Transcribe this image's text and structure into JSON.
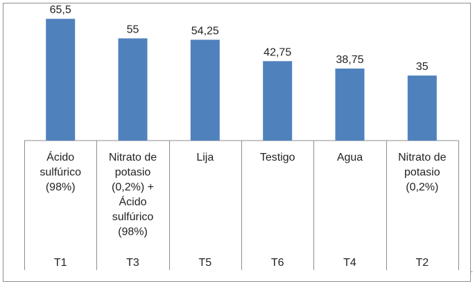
{
  "chart_data": {
    "type": "bar",
    "categories": [
      [
        "Ácido",
        "sulfúrico",
        "(98%)"
      ],
      [
        "Nitrato de",
        "potasio",
        "(0,2%) +",
        "Ácido",
        "sulfúrico",
        "(98%)"
      ],
      [
        "Lija"
      ],
      [
        "Testigo"
      ],
      [
        "Agua"
      ],
      [
        "Nitrato de",
        "potasio",
        "(0,2%)"
      ]
    ],
    "codes": [
      "T1",
      "T3",
      "T5",
      "T6",
      "T4",
      "T2"
    ],
    "values": [
      65.5,
      55,
      54.25,
      42.75,
      38.75,
      35
    ],
    "value_labels": [
      "65,5",
      "55",
      "54,25",
      "42,75",
      "38,75",
      "35"
    ],
    "ylim": [
      0,
      68.2
    ],
    "grid": false,
    "legend": "none",
    "bar_color": "#4f81bd"
  },
  "trailing_mark": "."
}
